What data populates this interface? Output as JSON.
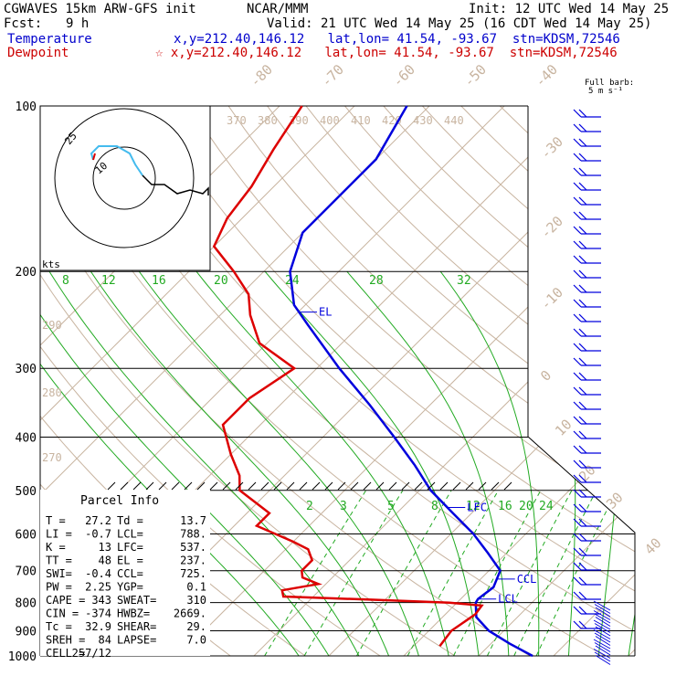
{
  "header": {
    "model": "CGWAVES 15km ARW-GFS init",
    "fcst_label": "Fcst:",
    "fcst_value": "9 h",
    "org": "NCAR/MMM",
    "init": "Init: 12 UTC Wed 14 May 25",
    "valid": "Valid: 21 UTC Wed 14 May 25 (16 CDT Wed 14 May 25)",
    "temp_label": "Temperature",
    "temp_loc": "x,y=212.40,146.12   lat,lon= 41.54, -93.67  stn=KDSM,72546",
    "dew_label": "Dewpoint",
    "dew_loc": "☆ x,y=212.40,146.12   lat,lon= 41.54, -93.67  stn=KDSM,72546",
    "barb_legend_1": "Full barb:",
    "barb_legend_2": "5 m s⁻¹"
  },
  "colors": {
    "temperature": "#0000dd",
    "dewpoint": "#dd0000",
    "isotherm": "#c8b4a0",
    "dry_adiabat": "#c8b4a0",
    "moist_adiabat": "#22aa22",
    "mixing_ratio": "#22aa22",
    "isobar": "#000000",
    "hodograph": "#44bbee"
  },
  "labels": {
    "el": "EL",
    "lfc": "LFC",
    "ccl": "CCL",
    "lcl": "LCL",
    "kts": "kts",
    "hodo_ring_inner": "10",
    "hodo_ring_outer": "25",
    "parcel_info": "Parcel Info"
  },
  "parcel_info": [
    [
      "T  =",
      "27.2",
      "Td =",
      "13.7"
    ],
    [
      "LI =",
      "-0.7",
      "LCL=",
      "788."
    ],
    [
      "K  =",
      "13",
      "LFC=",
      "537."
    ],
    [
      "TT =",
      "48",
      "EL =",
      "237."
    ],
    [
      "SWI=",
      "-0.4",
      "CCL=",
      "725."
    ],
    [
      "PW =",
      "2.25",
      "YGP=",
      "0.1"
    ],
    [
      "CAPE =",
      "343",
      "SWEAT=",
      "310"
    ],
    [
      "CIN =",
      "-374",
      "HWBZ=",
      "2669."
    ],
    [
      "Tc =",
      "32.9",
      "SHEAR=",
      "29."
    ],
    [
      "SREH =",
      "84",
      "LAPSE=",
      "7.0"
    ],
    [
      "CELL =",
      "257/12",
      "",
      ""
    ]
  ],
  "chart_data": {
    "type": "skew-t",
    "pressure_ticks": [
      "100",
      "200",
      "300",
      "400",
      "500",
      "600",
      "700",
      "800",
      "900",
      "1000"
    ],
    "isotherm_labels": [
      "-80",
      "-70",
      "-60",
      "-50",
      "-40",
      "-30",
      "-20",
      "-10",
      "0",
      "10",
      "20",
      "30",
      "40"
    ],
    "theta_labels": [
      "370",
      "380",
      "390",
      "400",
      "410",
      "420",
      "430",
      "440"
    ],
    "theta_labels_left": [
      "290",
      "280",
      "270"
    ],
    "mixing_ratio_labels": [
      "2",
      "3",
      "5",
      "8",
      "12",
      "16",
      "20",
      "24"
    ],
    "moist_labels": [
      "8",
      "12",
      "16",
      "20",
      "24",
      "28",
      "32"
    ],
    "temperature_profile": [
      {
        "p": 1000,
        "t": 27.2
      },
      {
        "p": 950,
        "t": 22.5
      },
      {
        "p": 900,
        "t": 18.0
      },
      {
        "p": 850,
        "t": 14.5
      },
      {
        "p": 800,
        "t": 12.5
      },
      {
        "p": 788,
        "t": 12.3
      },
      {
        "p": 750,
        "t": 12.8
      },
      {
        "p": 700,
        "t": 11.5
      },
      {
        "p": 650,
        "t": 7.5
      },
      {
        "p": 600,
        "t": 3.0
      },
      {
        "p": 550,
        "t": -2.5
      },
      {
        "p": 500,
        "t": -8.5
      },
      {
        "p": 450,
        "t": -14.0
      },
      {
        "p": 400,
        "t": -20.5
      },
      {
        "p": 350,
        "t": -28.0
      },
      {
        "p": 300,
        "t": -37.0
      },
      {
        "p": 250,
        "t": -47.0
      },
      {
        "p": 230,
        "t": -51.5
      },
      {
        "p": 200,
        "t": -56.5
      },
      {
        "p": 170,
        "t": -60.0
      },
      {
        "p": 150,
        "t": -60.0
      },
      {
        "p": 125,
        "t": -60.0
      },
      {
        "p": 100,
        "t": -63.0
      }
    ],
    "dewpoint_profile": [
      {
        "p": 960,
        "td": 13.5
      },
      {
        "p": 900,
        "td": 13.0
      },
      {
        "p": 840,
        "td": 14.0
      },
      {
        "p": 810,
        "td": 13.7
      },
      {
        "p": 800,
        "td": 9.0
      },
      {
        "p": 790,
        "td": -2.0
      },
      {
        "p": 780,
        "td": -14.0
      },
      {
        "p": 760,
        "td": -15.0
      },
      {
        "p": 740,
        "td": -11.0
      },
      {
        "p": 720,
        "td": -14.0
      },
      {
        "p": 700,
        "td": -15.0
      },
      {
        "p": 670,
        "td": -15.0
      },
      {
        "p": 640,
        "td": -17.0
      },
      {
        "p": 620,
        "td": -20.0
      },
      {
        "p": 580,
        "td": -27.0
      },
      {
        "p": 550,
        "td": -27.0
      },
      {
        "p": 500,
        "td": -34.0
      },
      {
        "p": 470,
        "td": -36.0
      },
      {
        "p": 430,
        "td": -40.0
      },
      {
        "p": 380,
        "td": -45.0
      },
      {
        "p": 340,
        "td": -45.0
      },
      {
        "p": 300,
        "td": -43.0
      },
      {
        "p": 270,
        "td": -51.0
      },
      {
        "p": 240,
        "td": -56.0
      },
      {
        "p": 220,
        "td": -59.0
      },
      {
        "p": 200,
        "td": -64.0
      },
      {
        "p": 180,
        "td": -70.0
      },
      {
        "p": 160,
        "td": -72.0
      },
      {
        "p": 140,
        "td": -73.0
      },
      {
        "p": 120,
        "td": -75.0
      },
      {
        "p": 100,
        "td": -77.0
      }
    ],
    "levels": {
      "el": 237,
      "lfc": 537,
      "ccl": 725,
      "lcl": 788
    }
  }
}
